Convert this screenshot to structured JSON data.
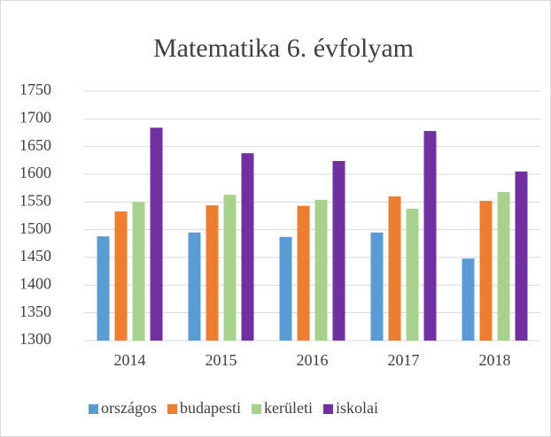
{
  "chart_data": {
    "type": "bar",
    "title": "Matematika 6. évfolyam",
    "categories": [
      "2014",
      "2015",
      "2016",
      "2017",
      "2018"
    ],
    "series": [
      {
        "name": "országos",
        "color": "#5b9bd5",
        "values": [
          1488,
          1495,
          1487,
          1495,
          1448
        ]
      },
      {
        "name": "budapesti",
        "color": "#ed7d31",
        "values": [
          1533,
          1544,
          1543,
          1560,
          1552
        ]
      },
      {
        "name": "kerületi",
        "color": "#a9d18e",
        "values": [
          1550,
          1563,
          1554,
          1538,
          1568
        ]
      },
      {
        "name": "iskolai",
        "color": "#7030a0",
        "values": [
          1684,
          1638,
          1624,
          1678,
          1605
        ]
      }
    ],
    "ylim": [
      1300,
      1750
    ],
    "yticks": [
      1300,
      1350,
      1400,
      1450,
      1500,
      1550,
      1600,
      1650,
      1700,
      1750
    ],
    "grid": true,
    "legend": "bottom"
  }
}
